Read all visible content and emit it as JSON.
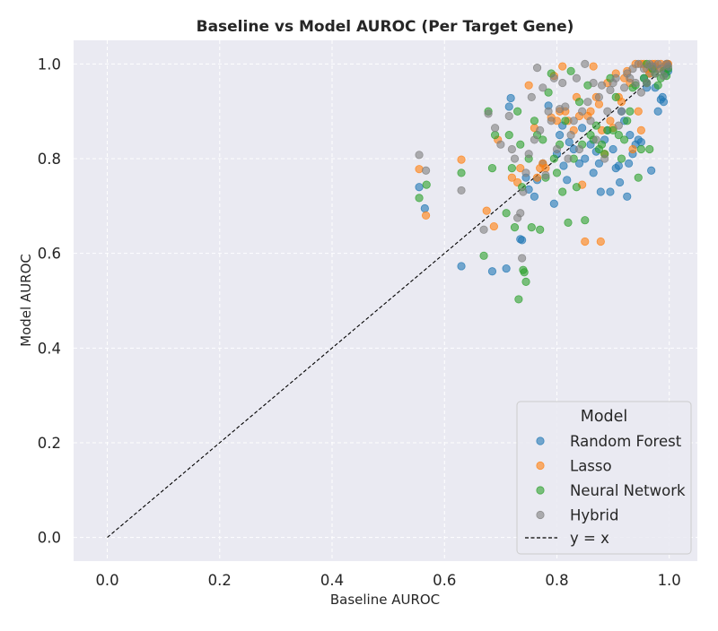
{
  "chart_data": {
    "type": "scatter",
    "title": "Baseline vs Model AUROC (Per Target Gene)",
    "xlabel": "Baseline AUROC",
    "ylabel": "Model AUROC",
    "xlim": [
      -0.06,
      1.05
    ],
    "ylim": [
      -0.05,
      1.05
    ],
    "xticks": [
      "0.0",
      "0.2",
      "0.4",
      "0.6",
      "0.8",
      "1.0"
    ],
    "yticks": [
      "0.0",
      "0.2",
      "0.4",
      "0.6",
      "0.8",
      "1.0"
    ],
    "grid": true,
    "legend": {
      "title": "Model",
      "position": "lower-right"
    },
    "reference_line": {
      "name": "y = x",
      "x": [
        0,
        1
      ],
      "y": [
        0,
        1
      ],
      "style": "dashed",
      "color": "#000000"
    },
    "series": [
      {
        "name": "Random Forest",
        "color": "#1f77b4",
        "points": [
          [
            0.555,
            0.74
          ],
          [
            0.565,
            0.695
          ],
          [
            0.63,
            0.573
          ],
          [
            0.685,
            0.562
          ],
          [
            0.71,
            0.568
          ],
          [
            0.715,
            0.91
          ],
          [
            0.718,
            0.928
          ],
          [
            0.735,
            0.63
          ],
          [
            0.738,
            0.628
          ],
          [
            0.745,
            0.76
          ],
          [
            0.75,
            0.735
          ],
          [
            0.76,
            0.72
          ],
          [
            0.765,
            0.755
          ],
          [
            0.775,
            0.79
          ],
          [
            0.785,
            0.912
          ],
          [
            0.795,
            0.705
          ],
          [
            0.8,
            0.81
          ],
          [
            0.805,
            0.85
          ],
          [
            0.81,
            0.87
          ],
          [
            0.812,
            0.785
          ],
          [
            0.818,
            0.755
          ],
          [
            0.822,
            0.835
          ],
          [
            0.83,
            0.82
          ],
          [
            0.84,
            0.79
          ],
          [
            0.845,
            0.865
          ],
          [
            0.85,
            0.8
          ],
          [
            0.86,
            0.83
          ],
          [
            0.865,
            0.77
          ],
          [
            0.87,
            0.815
          ],
          [
            0.875,
            0.79
          ],
          [
            0.878,
            0.73
          ],
          [
            0.885,
            0.84
          ],
          [
            0.89,
            0.86
          ],
          [
            0.895,
            0.73
          ],
          [
            0.9,
            0.82
          ],
          [
            0.905,
            0.78
          ],
          [
            0.91,
            0.785
          ],
          [
            0.912,
            0.75
          ],
          [
            0.915,
            0.9
          ],
          [
            0.92,
            0.88
          ],
          [
            0.925,
            0.72
          ],
          [
            0.928,
            0.79
          ],
          [
            0.93,
            0.85
          ],
          [
            0.935,
            0.81
          ],
          [
            0.94,
            0.83
          ],
          [
            0.945,
            0.84
          ],
          [
            0.95,
            0.835
          ],
          [
            0.955,
            0.97
          ],
          [
            0.96,
            0.96
          ],
          [
            0.965,
            0.98
          ],
          [
            0.968,
            0.775
          ],
          [
            0.972,
            0.99
          ],
          [
            0.975,
            0.95
          ],
          [
            0.98,
            0.9
          ],
          [
            0.985,
            0.925
          ],
          [
            0.988,
            0.93
          ],
          [
            0.99,
            0.92
          ],
          [
            0.993,
            0.98
          ],
          [
            0.995,
            0.99
          ],
          [
            0.997,
            1.0
          ],
          [
            0.998,
            0.985
          ],
          [
            0.96,
            0.95
          ],
          [
            0.965,
            0.995
          ]
        ]
      },
      {
        "name": "Lasso",
        "color": "#ff7f0e",
        "points": [
          [
            0.555,
            0.778
          ],
          [
            0.567,
            0.68
          ],
          [
            0.63,
            0.798
          ],
          [
            0.675,
            0.69
          ],
          [
            0.688,
            0.657
          ],
          [
            0.695,
            0.84
          ],
          [
            0.72,
            0.76
          ],
          [
            0.73,
            0.75
          ],
          [
            0.735,
            0.78
          ],
          [
            0.75,
            0.955
          ],
          [
            0.76,
            0.865
          ],
          [
            0.765,
            0.76
          ],
          [
            0.77,
            0.78
          ],
          [
            0.775,
            0.79
          ],
          [
            0.78,
            0.78
          ],
          [
            0.79,
            0.887
          ],
          [
            0.795,
            0.975
          ],
          [
            0.8,
            0.88
          ],
          [
            0.805,
            0.9
          ],
          [
            0.81,
            0.995
          ],
          [
            0.815,
            0.9
          ],
          [
            0.82,
            0.88
          ],
          [
            0.83,
            0.86
          ],
          [
            0.835,
            0.93
          ],
          [
            0.84,
            0.89
          ],
          [
            0.845,
            0.745
          ],
          [
            0.85,
            0.625
          ],
          [
            0.855,
            0.89
          ],
          [
            0.86,
            0.9
          ],
          [
            0.865,
            0.995
          ],
          [
            0.87,
            0.93
          ],
          [
            0.875,
            0.915
          ],
          [
            0.878,
            0.625
          ],
          [
            0.88,
            0.86
          ],
          [
            0.885,
            0.81
          ],
          [
            0.89,
            0.96
          ],
          [
            0.895,
            0.88
          ],
          [
            0.9,
            0.865
          ],
          [
            0.905,
            0.98
          ],
          [
            0.91,
            0.93
          ],
          [
            0.915,
            0.92
          ],
          [
            0.92,
            0.97
          ],
          [
            0.925,
            0.985
          ],
          [
            0.93,
            0.96
          ],
          [
            0.935,
            0.82
          ],
          [
            0.94,
            1.0
          ],
          [
            0.945,
            0.9
          ],
          [
            0.95,
            0.86
          ],
          [
            0.955,
            1.0
          ],
          [
            0.96,
            0.99
          ],
          [
            0.965,
            0.98
          ],
          [
            0.97,
            1.0
          ],
          [
            0.975,
            0.995
          ],
          [
            0.98,
            0.99
          ],
          [
            0.985,
            1.0
          ],
          [
            0.99,
            0.995
          ],
          [
            0.995,
            1.0
          ],
          [
            0.998,
            1.0
          ],
          [
            0.95,
            1.0
          ],
          [
            0.975,
            1.0
          ]
        ]
      },
      {
        "name": "Neural Network",
        "color": "#2ca02c",
        "points": [
          [
            0.555,
            0.717
          ],
          [
            0.568,
            0.745
          ],
          [
            0.63,
            0.77
          ],
          [
            0.67,
            0.595
          ],
          [
            0.678,
            0.9
          ],
          [
            0.685,
            0.78
          ],
          [
            0.69,
            0.85
          ],
          [
            0.71,
            0.685
          ],
          [
            0.715,
            0.85
          ],
          [
            0.72,
            0.78
          ],
          [
            0.725,
            0.655
          ],
          [
            0.73,
            0.9
          ],
          [
            0.732,
            0.503
          ],
          [
            0.735,
            0.83
          ],
          [
            0.738,
            0.74
          ],
          [
            0.74,
            0.565
          ],
          [
            0.742,
            0.56
          ],
          [
            0.745,
            0.54
          ],
          [
            0.75,
            0.8
          ],
          [
            0.755,
            0.655
          ],
          [
            0.76,
            0.88
          ],
          [
            0.765,
            0.85
          ],
          [
            0.77,
            0.65
          ],
          [
            0.775,
            0.84
          ],
          [
            0.78,
            0.76
          ],
          [
            0.785,
            0.94
          ],
          [
            0.79,
            0.98
          ],
          [
            0.795,
            0.8
          ],
          [
            0.8,
            0.77
          ],
          [
            0.805,
            0.83
          ],
          [
            0.81,
            0.73
          ],
          [
            0.815,
            0.88
          ],
          [
            0.82,
            0.665
          ],
          [
            0.825,
            0.985
          ],
          [
            0.83,
            0.8
          ],
          [
            0.835,
            0.74
          ],
          [
            0.84,
            0.92
          ],
          [
            0.845,
            0.83
          ],
          [
            0.85,
            0.67
          ],
          [
            0.855,
            0.955
          ],
          [
            0.86,
            0.85
          ],
          [
            0.865,
            0.84
          ],
          [
            0.87,
            0.87
          ],
          [
            0.875,
            0.82
          ],
          [
            0.88,
            0.83
          ],
          [
            0.885,
            0.81
          ],
          [
            0.89,
            0.86
          ],
          [
            0.895,
            0.97
          ],
          [
            0.9,
            0.86
          ],
          [
            0.905,
            0.93
          ],
          [
            0.91,
            0.85
          ],
          [
            0.915,
            0.8
          ],
          [
            0.92,
            0.84
          ],
          [
            0.925,
            0.88
          ],
          [
            0.93,
            0.9
          ],
          [
            0.935,
            0.95
          ],
          [
            0.94,
            0.955
          ],
          [
            0.945,
            0.76
          ],
          [
            0.95,
            0.82
          ],
          [
            0.955,
            0.97
          ],
          [
            0.96,
            0.96
          ],
          [
            0.965,
            0.82
          ],
          [
            0.97,
            0.99
          ],
          [
            0.975,
            0.98
          ],
          [
            0.98,
            0.955
          ],
          [
            0.985,
            0.97
          ],
          [
            0.99,
            0.985
          ],
          [
            0.995,
            0.975
          ],
          [
            0.998,
            0.99
          ],
          [
            0.96,
            1.0
          ]
        ]
      },
      {
        "name": "Hybrid",
        "color": "#7f7f7f",
        "points": [
          [
            0.555,
            0.808
          ],
          [
            0.567,
            0.775
          ],
          [
            0.63,
            0.733
          ],
          [
            0.67,
            0.65
          ],
          [
            0.678,
            0.895
          ],
          [
            0.69,
            0.865
          ],
          [
            0.7,
            0.83
          ],
          [
            0.715,
            0.89
          ],
          [
            0.72,
            0.82
          ],
          [
            0.725,
            0.8
          ],
          [
            0.73,
            0.675
          ],
          [
            0.735,
            0.685
          ],
          [
            0.738,
            0.59
          ],
          [
            0.74,
            0.73
          ],
          [
            0.745,
            0.77
          ],
          [
            0.75,
            0.81
          ],
          [
            0.755,
            0.93
          ],
          [
            0.76,
            0.84
          ],
          [
            0.765,
            0.992
          ],
          [
            0.77,
            0.86
          ],
          [
            0.775,
            0.95
          ],
          [
            0.78,
            0.765
          ],
          [
            0.785,
            0.9
          ],
          [
            0.79,
            0.88
          ],
          [
            0.795,
            0.97
          ],
          [
            0.8,
            0.82
          ],
          [
            0.805,
            0.905
          ],
          [
            0.81,
            0.96
          ],
          [
            0.815,
            0.91
          ],
          [
            0.82,
            0.8
          ],
          [
            0.825,
            0.85
          ],
          [
            0.83,
            0.88
          ],
          [
            0.835,
            0.97
          ],
          [
            0.84,
            0.82
          ],
          [
            0.845,
            0.9
          ],
          [
            0.85,
            1.0
          ],
          [
            0.855,
            0.92
          ],
          [
            0.86,
            0.88
          ],
          [
            0.865,
            0.96
          ],
          [
            0.87,
            0.84
          ],
          [
            0.875,
            0.93
          ],
          [
            0.88,
            0.955
          ],
          [
            0.885,
            0.8
          ],
          [
            0.89,
            0.9
          ],
          [
            0.895,
            0.945
          ],
          [
            0.9,
            0.96
          ],
          [
            0.905,
            0.97
          ],
          [
            0.91,
            0.87
          ],
          [
            0.915,
            0.9
          ],
          [
            0.92,
            0.95
          ],
          [
            0.925,
            0.98
          ],
          [
            0.93,
            0.97
          ],
          [
            0.935,
            0.99
          ],
          [
            0.94,
            0.96
          ],
          [
            0.945,
            1.0
          ],
          [
            0.95,
            0.94
          ],
          [
            0.955,
            0.99
          ],
          [
            0.96,
            0.96
          ],
          [
            0.965,
            1.0
          ],
          [
            0.97,
            0.995
          ],
          [
            0.975,
            0.98
          ],
          [
            0.98,
            1.0
          ],
          [
            0.985,
            0.99
          ],
          [
            0.99,
            0.975
          ],
          [
            0.995,
            1.0
          ],
          [
            0.998,
            0.995
          ]
        ]
      }
    ]
  }
}
